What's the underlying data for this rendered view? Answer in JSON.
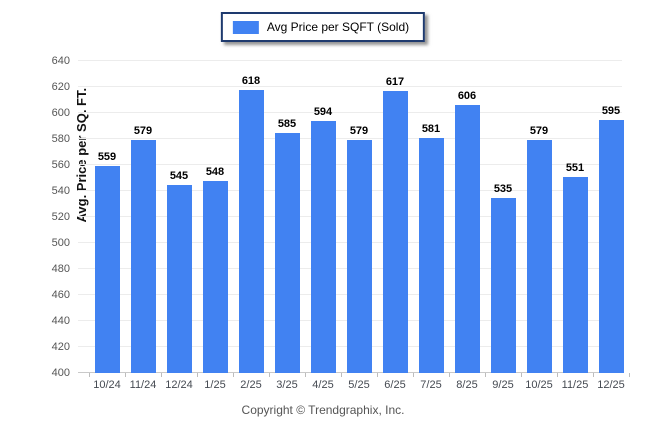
{
  "legend": {
    "label": "Avg Price per SQFT (Sold)",
    "swatch_color": "#4182f2"
  },
  "footer": {
    "text": "Copyright © Trendgraphix, Inc."
  },
  "chart_data": {
    "type": "bar",
    "title": "Avg Price per SQFT (Sold)",
    "xlabel": "",
    "ylabel": "Avg. Price per SQ. FT.",
    "categories": [
      "10/24",
      "11/24",
      "12/24",
      "1/25",
      "2/25",
      "3/25",
      "4/25",
      "5/25",
      "6/25",
      "7/25",
      "8/25",
      "9/25",
      "10/25",
      "11/25",
      "12/25"
    ],
    "values": [
      559,
      579,
      545,
      548,
      618,
      585,
      594,
      579,
      617,
      581,
      606,
      535,
      579,
      551,
      595
    ],
    "ylim": [
      400,
      640
    ],
    "ytick_step": 20,
    "grid": true,
    "legend_position": "top-center",
    "bar_color": "#4182f2",
    "gridline_color": "#ececec"
  }
}
